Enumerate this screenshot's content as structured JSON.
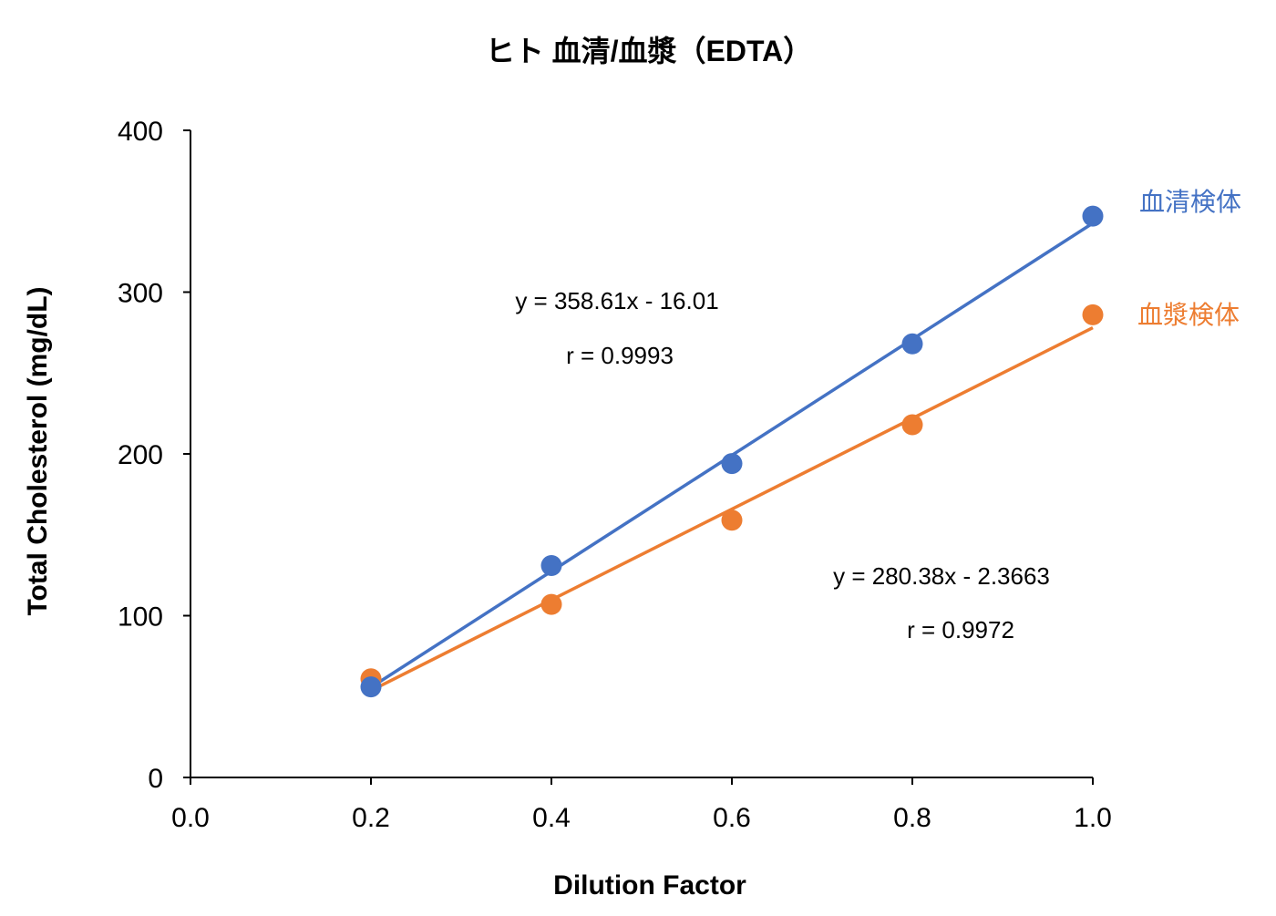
{
  "chart_data": {
    "type": "scatter",
    "title": "ヒト 血清/血漿（EDTA）",
    "xlabel": "Dilution Factor",
    "ylabel": "Total Cholesterol (mg/dL)",
    "xlim": [
      0,
      1.0
    ],
    "ylim": [
      0,
      400
    ],
    "xticks": [
      "0.0",
      "0.2",
      "0.4",
      "0.6",
      "0.8",
      "1.0"
    ],
    "yticks": [
      "0",
      "100",
      "200",
      "300",
      "400"
    ],
    "grid": false,
    "legend": "right, labels at line ends",
    "series": [
      {
        "name": "血清検体",
        "color": "#4472C4",
        "x": [
          0.2,
          0.4,
          0.6,
          0.8,
          1.0
        ],
        "y": [
          56,
          131,
          194,
          268,
          347
        ],
        "trendline": {
          "slope": 358.61,
          "intercept": -16.01
        },
        "equation": "y = 358.61x - 16.01",
        "r": "r = 0.9993"
      },
      {
        "name": "血漿検体",
        "color": "#ED7D31",
        "x": [
          0.2,
          0.4,
          0.6,
          0.8,
          1.0
        ],
        "y": [
          61,
          107,
          159,
          218,
          286
        ],
        "trendline": {
          "slope": 280.38,
          "intercept": -2.3663
        },
        "equation": "y = 280.38x - 2.3663",
        "r": "r = 0.9972"
      }
    ]
  }
}
